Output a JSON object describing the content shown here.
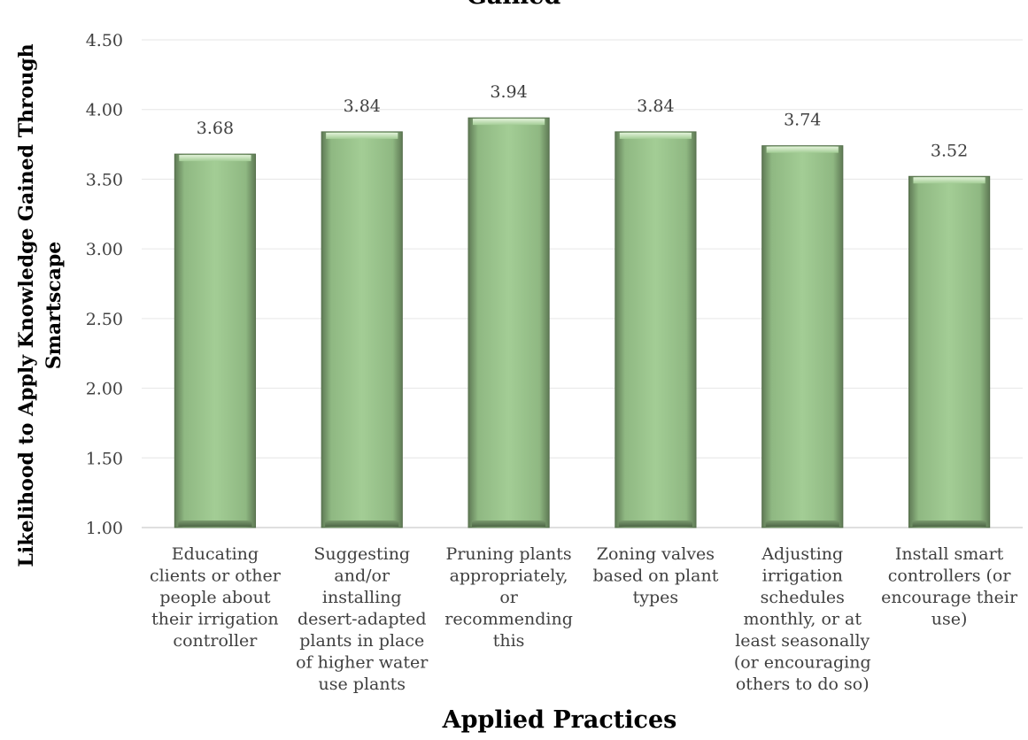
{
  "chart_data": {
    "type": "bar",
    "title": "Gained",
    "xlabel": "Applied Practices",
    "ylabel_lines": [
      "Likelihood to Apply Knowledge Gained Through",
      "Smartscape"
    ],
    "ylim": [
      1.0,
      4.5
    ],
    "yticks": [
      "1.00",
      "1.50",
      "2.00",
      "2.50",
      "3.00",
      "3.50",
      "4.00",
      "4.50"
    ],
    "grid": true,
    "bar_color": "#9dc78f",
    "categories": [
      [
        "Educating",
        "clients or other",
        "people about",
        "their irrigation",
        "controller"
      ],
      [
        "Suggesting",
        "and/or",
        "installing",
        "desert-adapted",
        "plants in place",
        "of higher water",
        "use plants"
      ],
      [
        "Pruning plants",
        "appropriately,",
        "or",
        "recommending",
        "this"
      ],
      [
        "Zoning valves",
        "based on plant",
        "types"
      ],
      [
        "Adjusting",
        "irrigation",
        "schedules",
        "monthly, or at",
        "least seasonally",
        "(or encouraging",
        "others to do so)"
      ],
      [
        "Install smart",
        "controllers (or",
        "encourage their",
        "use)"
      ]
    ],
    "values": [
      3.68,
      3.84,
      3.94,
      3.84,
      3.74,
      3.52
    ],
    "value_labels": [
      "3.68",
      "3.84",
      "3.94",
      "3.84",
      "3.74",
      "3.52"
    ]
  }
}
